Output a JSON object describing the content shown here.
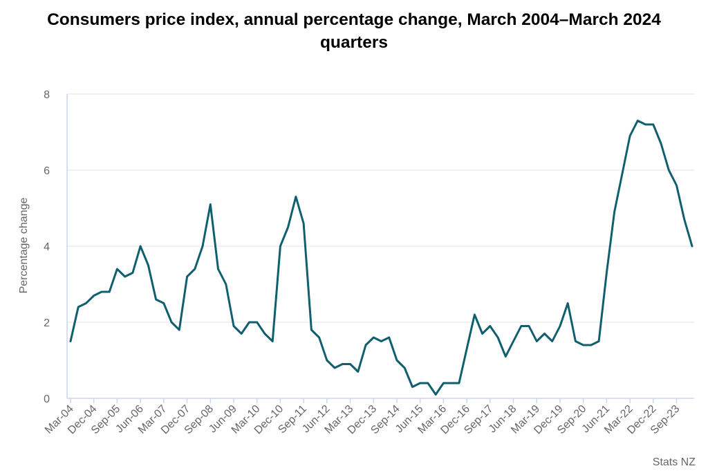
{
  "colors": {
    "line": "#0f5f6e",
    "grid": "#e3e3e3",
    "axis": "#ccd6eb",
    "text": "#666666"
  },
  "chart_data": {
    "type": "line",
    "title": "Consumers price index, annual percentage change, March 2004–March 2024 quarters",
    "xlabel": "",
    "ylabel": "Percentage change",
    "ylim": [
      0,
      8
    ],
    "yticks": [
      0,
      2,
      4,
      6,
      8
    ],
    "grid": true,
    "source": "Stats NZ",
    "x_tick_labels": [
      "Mar-04",
      "Dec-04",
      "Sep-05",
      "Jun-06",
      "Mar-07",
      "Dec-07",
      "Sep-08",
      "Jun-09",
      "Mar-10",
      "Dec-10",
      "Sep-11",
      "Jun-12",
      "Mar-13",
      "Dec-13",
      "Sep-14",
      "Jun-15",
      "Mar-16",
      "Dec-16",
      "Sep-17",
      "Jun-18",
      "Mar-19",
      "Dec-19",
      "Sep-20",
      "Jun-21",
      "Mar-22",
      "Dec-22",
      "Sep-23"
    ],
    "x_tick_every": 3,
    "x": [
      "Mar-04",
      "Jun-04",
      "Sep-04",
      "Dec-04",
      "Mar-05",
      "Jun-05",
      "Sep-05",
      "Dec-05",
      "Mar-06",
      "Jun-06",
      "Sep-06",
      "Dec-06",
      "Mar-07",
      "Jun-07",
      "Sep-07",
      "Dec-07",
      "Mar-08",
      "Jun-08",
      "Sep-08",
      "Dec-08",
      "Mar-09",
      "Jun-09",
      "Sep-09",
      "Dec-09",
      "Mar-10",
      "Jun-10",
      "Sep-10",
      "Dec-10",
      "Mar-11",
      "Jun-11",
      "Sep-11",
      "Dec-11",
      "Mar-12",
      "Jun-12",
      "Sep-12",
      "Dec-12",
      "Mar-13",
      "Jun-13",
      "Sep-13",
      "Dec-13",
      "Mar-14",
      "Jun-14",
      "Sep-14",
      "Dec-14",
      "Mar-15",
      "Jun-15",
      "Sep-15",
      "Dec-15",
      "Mar-16",
      "Jun-16",
      "Sep-16",
      "Dec-16",
      "Mar-17",
      "Jun-17",
      "Sep-17",
      "Dec-17",
      "Mar-18",
      "Jun-18",
      "Sep-18",
      "Dec-18",
      "Mar-19",
      "Jun-19",
      "Sep-19",
      "Dec-19",
      "Mar-20",
      "Jun-20",
      "Sep-20",
      "Dec-20",
      "Mar-21",
      "Jun-21",
      "Sep-21",
      "Dec-21",
      "Mar-22",
      "Jun-22",
      "Sep-22",
      "Dec-22",
      "Mar-23",
      "Jun-23",
      "Sep-23",
      "Dec-23",
      "Mar-24"
    ],
    "series": [
      {
        "values": [
          1.5,
          2.4,
          2.5,
          2.7,
          2.8,
          2.8,
          3.4,
          3.2,
          3.3,
          4.0,
          3.5,
          2.6,
          2.5,
          2.0,
          1.8,
          3.2,
          3.4,
          4.0,
          5.1,
          3.4,
          3.0,
          1.9,
          1.7,
          2.0,
          2.0,
          1.7,
          1.5,
          4.0,
          4.5,
          5.3,
          4.6,
          1.8,
          1.6,
          1.0,
          0.8,
          0.9,
          0.9,
          0.7,
          1.4,
          1.6,
          1.5,
          1.6,
          1.0,
          0.8,
          0.3,
          0.4,
          0.4,
          0.1,
          0.4,
          0.4,
          0.4,
          1.3,
          2.2,
          1.7,
          1.9,
          1.6,
          1.1,
          1.5,
          1.9,
          1.9,
          1.5,
          1.7,
          1.5,
          1.9,
          2.5,
          1.5,
          1.4,
          1.4,
          1.5,
          3.3,
          4.9,
          5.9,
          6.9,
          7.3,
          7.2,
          7.2,
          6.7,
          6.0,
          5.6,
          4.7,
          4.0
        ]
      }
    ]
  }
}
